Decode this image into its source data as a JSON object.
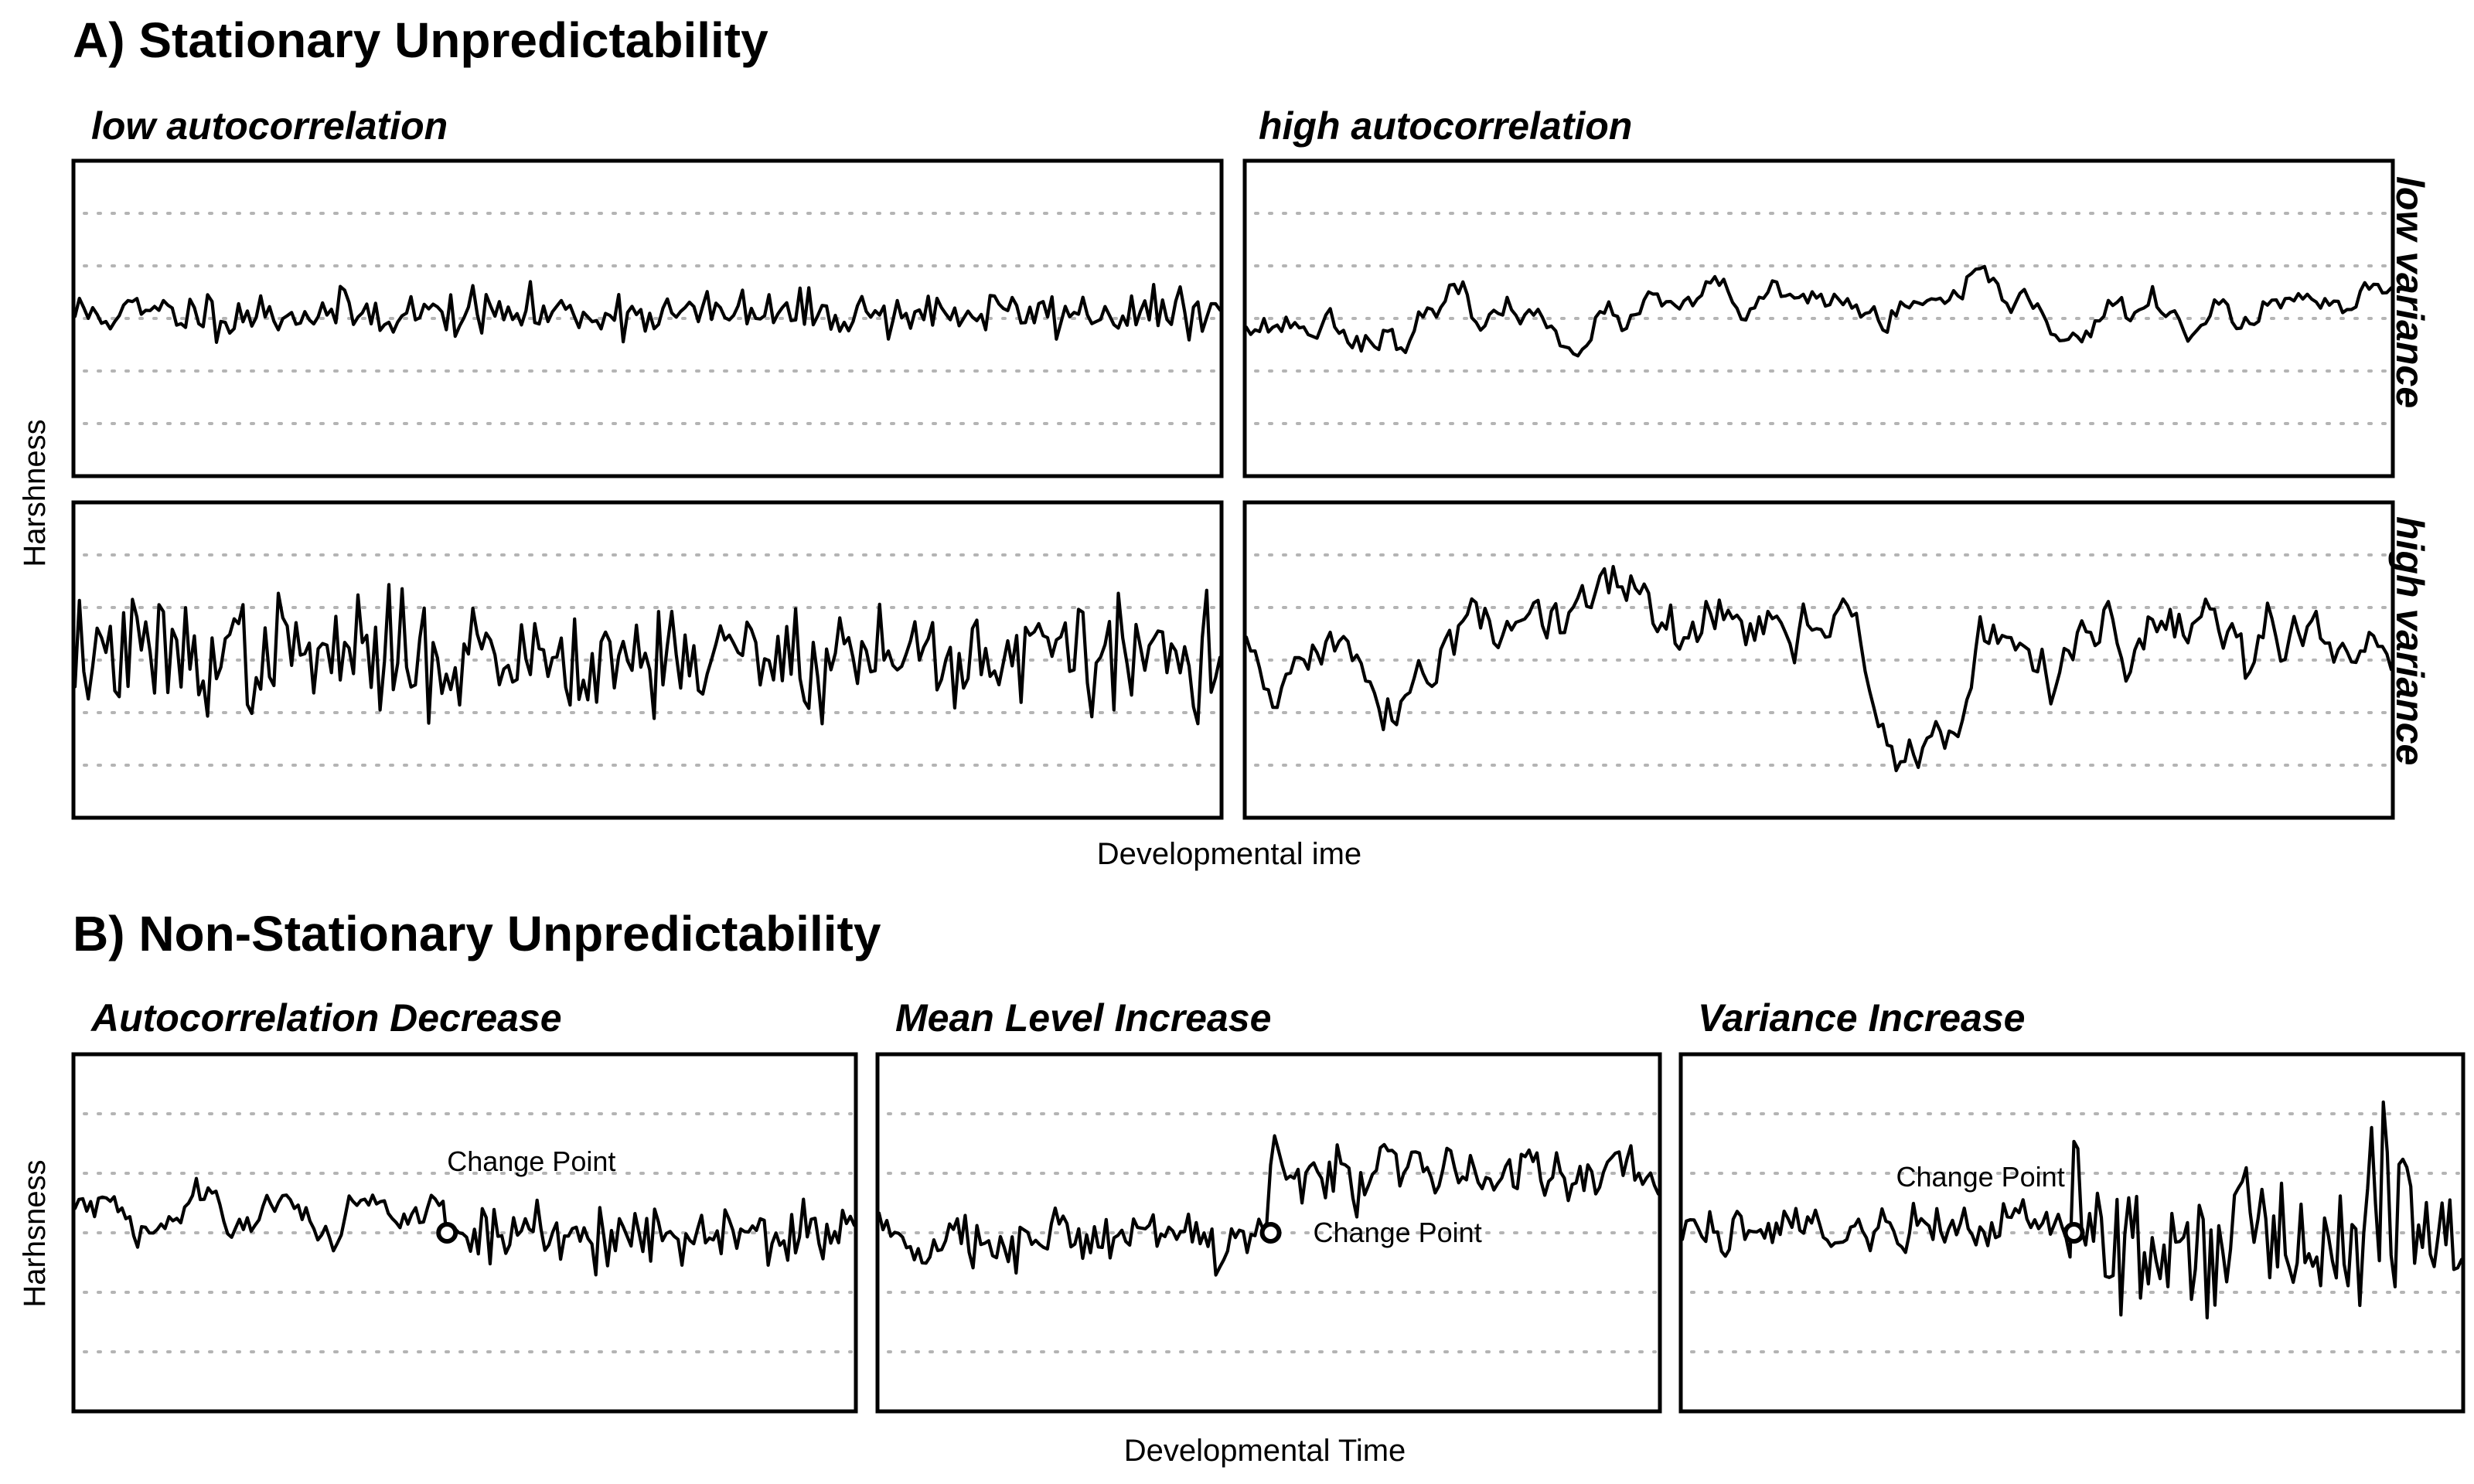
{
  "sections": {
    "a_title": "A) Stationary Unpredictability",
    "b_title": "B) Non-Stationary Unpredictability"
  },
  "labels": {
    "a_xlabel": "Developmental ime",
    "a_ylabel": "Harshness",
    "b_xlabel": "Developmental Time",
    "b_ylabel": "Harhsness",
    "col_low_ac": "low autocorrelation",
    "col_high_ac": "high autocorrelation",
    "row_low_var": "low variance",
    "row_high_var": "high variance"
  },
  "chart_data": [
    {
      "type": "line",
      "title": "low autocorrelation",
      "facet_row": "low variance",
      "n_points": 260,
      "ylim": [
        -3,
        3
      ],
      "generator": {
        "phi": 0.0,
        "sd": 0.22,
        "seed": 11,
        "offset": 0.1
      },
      "x": [],
      "y": []
    },
    {
      "type": "line",
      "title": "high autocorrelation",
      "facet_row": "low variance",
      "n_points": 260,
      "ylim": [
        -3,
        3
      ],
      "generator": {
        "phi": 0.88,
        "sd": 0.15,
        "seed": 23,
        "offset": 0.0
      },
      "x": [],
      "y": []
    },
    {
      "type": "line",
      "title": "low autocorrelation",
      "facet_row": "high variance",
      "n_points": 260,
      "ylim": [
        -3,
        3
      ],
      "generator": {
        "phi": 0.0,
        "sd": 0.55,
        "seed": 37,
        "offset": 0.1
      },
      "x": [],
      "y": []
    },
    {
      "type": "line",
      "title": "high autocorrelation",
      "facet_row": "high variance",
      "n_points": 260,
      "ylim": [
        -3,
        3
      ],
      "generator": {
        "phi": 0.93,
        "sd": 0.32,
        "seed": 51,
        "offset": 0.0
      },
      "x": [],
      "y": []
    },
    {
      "type": "line",
      "title": "Autocorrelation Decrease",
      "n_points": 200,
      "ylim": [
        -3,
        3
      ],
      "change_point": {
        "x": 95,
        "label": "Change Point"
      },
      "generator": {
        "phi_before": 0.85,
        "phi_after": 0.0,
        "sd_before": 0.18,
        "sd_after": 0.3,
        "mean_before": 0.3,
        "mean_after": 0.0,
        "seed": 61
      },
      "x": [],
      "y": []
    },
    {
      "type": "line",
      "title": "Mean Level Increase",
      "n_points": 200,
      "ylim": [
        -3,
        3
      ],
      "change_point": {
        "x": 100,
        "label": "Change Point"
      },
      "generator": {
        "phi_before": 0.5,
        "phi_after": 0.5,
        "sd_before": 0.25,
        "sd_after": 0.25,
        "mean_before": 0.0,
        "mean_after": 1.0,
        "seed": 73
      },
      "x": [],
      "y": []
    },
    {
      "type": "line",
      "title": "Variance Increase",
      "n_points": 200,
      "ylim": [
        -3,
        3
      ],
      "change_point": {
        "x": 100,
        "label": "Change Point"
      },
      "generator": {
        "phi_before": 0.3,
        "phi_after": 0.3,
        "sd_before": 0.22,
        "sd_after": 0.75,
        "mean_before": 0.1,
        "mean_after": 0.1,
        "seed": 89
      },
      "x": [],
      "y": []
    }
  ]
}
